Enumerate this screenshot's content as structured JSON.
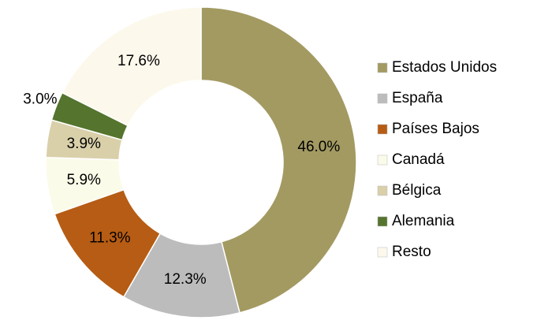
{
  "chart_data": {
    "type": "donut",
    "categories": [
      "Estados Unidos",
      "España",
      "Países Bajos",
      "Canadá",
      "Bélgica",
      "Alemania",
      "Resto"
    ],
    "values": [
      46.0,
      12.3,
      11.3,
      5.9,
      3.9,
      3.0,
      17.6
    ],
    "value_labels": [
      "46.0%",
      "12.3%",
      "11.3%",
      "5.9%",
      "3.9%",
      "3.0%",
      "17.6%"
    ],
    "colors": [
      "#a39a62",
      "#bcbcbc",
      "#b65c14",
      "#fbfbe9",
      "#d9d0aa",
      "#55742e",
      "#fcf9ec"
    ],
    "legend": "right"
  }
}
